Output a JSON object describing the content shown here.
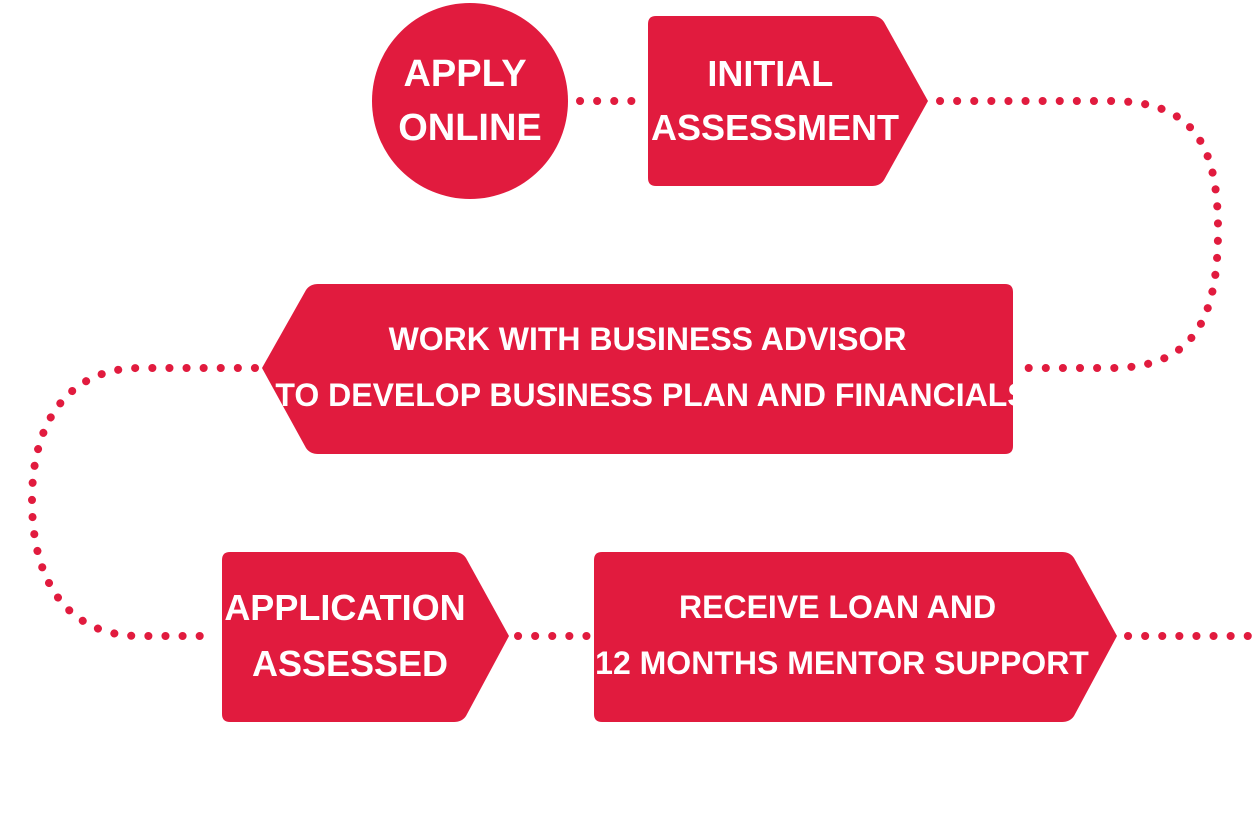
{
  "diagram": {
    "type": "process-flow",
    "accent_color": "#e11b3e",
    "text_color": "#ffffff",
    "background": "#ffffff",
    "steps": [
      {
        "id": "apply-online",
        "shape": "circle",
        "lines": [
          "APPLY",
          "ONLINE"
        ]
      },
      {
        "id": "initial-assessment",
        "shape": "arrow-right",
        "lines": [
          "INITIAL",
          "ASSESSMENT"
        ]
      },
      {
        "id": "work-with-business-advisor",
        "shape": "arrow-left",
        "lines": [
          "WORK WITH BUSINESS ADVISOR",
          "TO DEVELOP BUSINESS PLAN AND FINANCIALS"
        ]
      },
      {
        "id": "application-assessed",
        "shape": "arrow-right",
        "lines": [
          "APPLICATION",
          "ASSESSED"
        ]
      },
      {
        "id": "receive-loan",
        "shape": "arrow-right",
        "lines": [
          "RECEIVE LOAN AND",
          "12 MONTHS MENTOR SUPPORT"
        ]
      }
    ]
  }
}
